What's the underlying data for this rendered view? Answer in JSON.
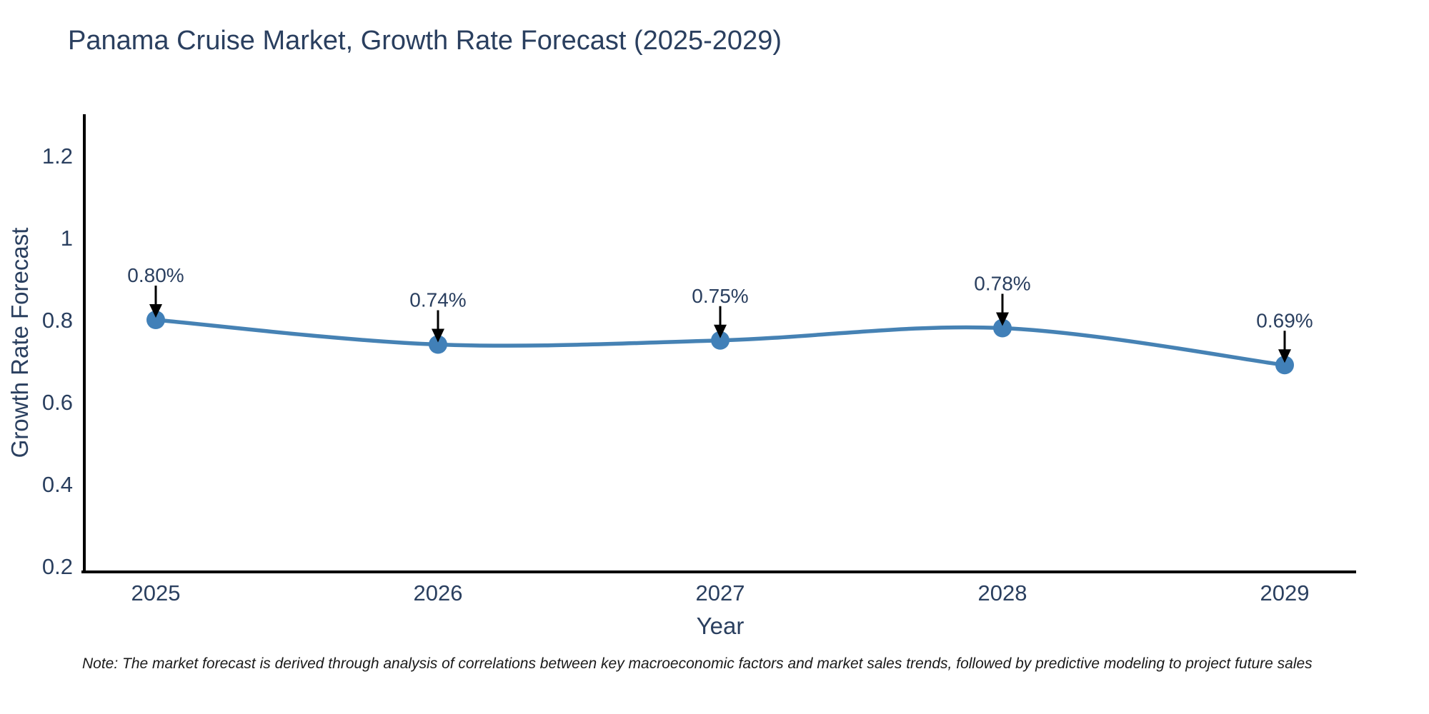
{
  "title": "Panama Cruise Market, Growth Rate Forecast (2025-2029)",
  "note": "Note: The market forecast is derived through analysis of correlations between key macroeconomic factors and market sales trends, followed by predictive modeling to project future sales",
  "chart_data": {
    "type": "line",
    "title": "Panama Cruise Market, Growth Rate Forecast (2025-2029)",
    "xlabel": "Year",
    "ylabel": "Growth Rate Forecast",
    "x": [
      2025,
      2026,
      2027,
      2028,
      2029
    ],
    "series": [
      {
        "name": "Growth Rate Forecast",
        "values": [
          0.8,
          0.74,
          0.75,
          0.78,
          0.69
        ]
      }
    ],
    "point_labels": [
      "0.80%",
      "0.74%",
      "0.75%",
      "0.78%",
      "0.69%"
    ],
    "y_ticks": [
      0.2,
      0.4,
      0.6,
      0.8,
      1,
      1.2
    ],
    "ylim": [
      0.18,
      1.31
    ],
    "line_shape": "spline",
    "grid": false,
    "legend_position": "none",
    "colors": {
      "line": "#4682b4",
      "marker": "#4180b8",
      "text": "#2a3f5f",
      "axis": "#000000",
      "arrow": "#000000"
    }
  }
}
